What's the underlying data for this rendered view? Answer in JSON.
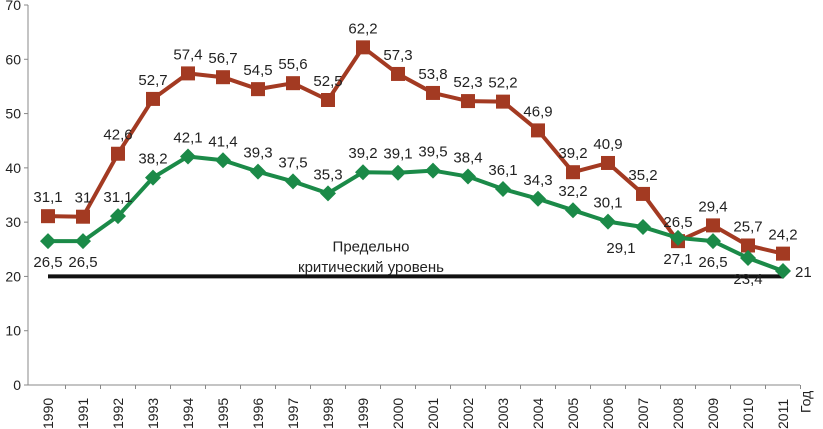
{
  "chart_data": {
    "type": "line",
    "title": "",
    "xlabel": "Год",
    "ylabel": "",
    "ylim": [
      0,
      70
    ],
    "yticks": [
      0,
      10,
      20,
      30,
      40,
      50,
      60,
      70
    ],
    "x": [
      "1990",
      "1991",
      "1992",
      "1993",
      "1994",
      "1995",
      "1996",
      "1997",
      "1998",
      "1999",
      "2000",
      "2001",
      "2002",
      "2003",
      "2004",
      "2005",
      "2006",
      "2007",
      "2008",
      "2009",
      "2010",
      "2011"
    ],
    "series": [
      {
        "name": "red",
        "color": "#a33a22",
        "marker": "square",
        "values": [
          31.1,
          31,
          42.6,
          52.7,
          57.4,
          56.7,
          54.5,
          55.6,
          52.5,
          62.2,
          57.3,
          53.8,
          52.3,
          52.2,
          46.9,
          39.2,
          40.9,
          35.2,
          26.5,
          29.4,
          25.7,
          24.2
        ],
        "labels": [
          "31,1",
          "31",
          "42,6",
          "52,7",
          "57,4",
          "56,7",
          "54,5",
          "55,6",
          "52,5",
          "62,2",
          "57,3",
          "53,8",
          "52,3",
          "52,2",
          "46,9",
          "39,2",
          "40,9",
          "35,2",
          "26,5",
          "29,4",
          "25,7",
          "24,2"
        ]
      },
      {
        "name": "green",
        "color": "#1b8a48",
        "marker": "diamond",
        "values": [
          26.5,
          26.5,
          31.1,
          38.2,
          42.1,
          41.4,
          39.3,
          37.5,
          35.3,
          39.2,
          39.1,
          39.5,
          38.4,
          36.1,
          34.3,
          32.2,
          30.1,
          29.1,
          27.1,
          26.5,
          23.4,
          21
        ],
        "labels": [
          "26,5",
          "26,5",
          "31,1",
          "38,2",
          "42,1",
          "41,4",
          "39,3",
          "37,5",
          "35,3",
          "39,2",
          "39,1",
          "39,5",
          "38,4",
          "36,1",
          "34,3",
          "32,2",
          "30,1",
          "29,1",
          "27,1",
          "26,5",
          "23,4",
          "21"
        ]
      }
    ],
    "threshold": {
      "value": 20,
      "label_line1": "Предельно",
      "label_line2": "критический уровень",
      "color": "#111111"
    }
  }
}
